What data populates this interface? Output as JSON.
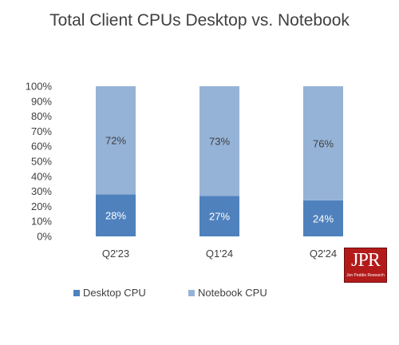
{
  "chart_data": {
    "type": "bar",
    "stacked": true,
    "title": "Total Client CPUs Desktop vs. Notebook",
    "categories": [
      "Q2'23",
      "Q1'24",
      "Q2'24"
    ],
    "series": [
      {
        "name": "Desktop CPU",
        "values": [
          28,
          27,
          24
        ],
        "labels": [
          "28%",
          "27%",
          "24%"
        ],
        "color": "#4f81bd",
        "label_color": "#ffffff"
      },
      {
        "name": "Notebook CPU",
        "values": [
          72,
          73,
          76
        ],
        "labels": [
          "72%",
          "73%",
          "76%"
        ],
        "color": "#95b3d7",
        "label_color": "#404040"
      }
    ],
    "ylim": [
      0,
      100
    ],
    "yticks": [
      "0%",
      "10%",
      "20%",
      "30%",
      "40%",
      "50%",
      "60%",
      "70%",
      "80%",
      "90%",
      "100%"
    ],
    "grid": false,
    "legend_position": "bottom-left"
  },
  "logo": {
    "name": "JPR",
    "subtitle": "Jon Peddie Research"
  }
}
